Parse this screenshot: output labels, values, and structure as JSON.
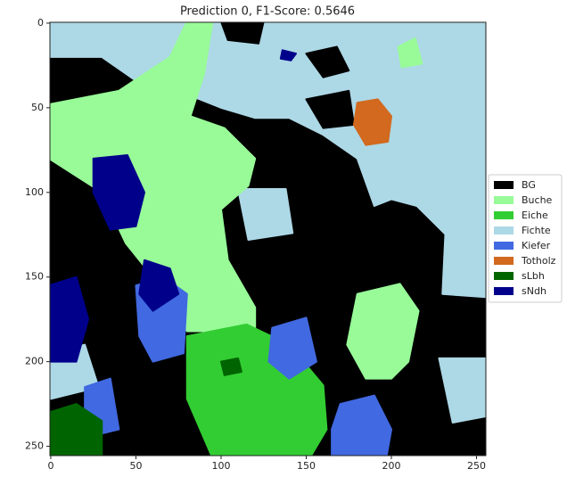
{
  "chart_data": {
    "type": "image",
    "title": "Prediction 0, F1-Score: 0.5646",
    "xlim": [
      -0.5,
      255.5
    ],
    "ylim": [
      255.5,
      -0.5
    ],
    "xticks": [
      0,
      50,
      100,
      150,
      200,
      250
    ],
    "yticks": [
      0,
      50,
      100,
      150,
      200,
      250
    ],
    "classes": [
      {
        "name": "BG",
        "color": "#000000"
      },
      {
        "name": "Buche",
        "color": "#98fb98"
      },
      {
        "name": "Eiche",
        "color": "#32cd32"
      },
      {
        "name": "Fichte",
        "color": "#add8e6"
      },
      {
        "name": "Kiefer",
        "color": "#4169e1"
      },
      {
        "name": "Totholz",
        "color": "#d2691e"
      },
      {
        "name": "sLbh",
        "color": "#006400"
      },
      {
        "name": "sNdh",
        "color": "#00008b"
      }
    ]
  }
}
